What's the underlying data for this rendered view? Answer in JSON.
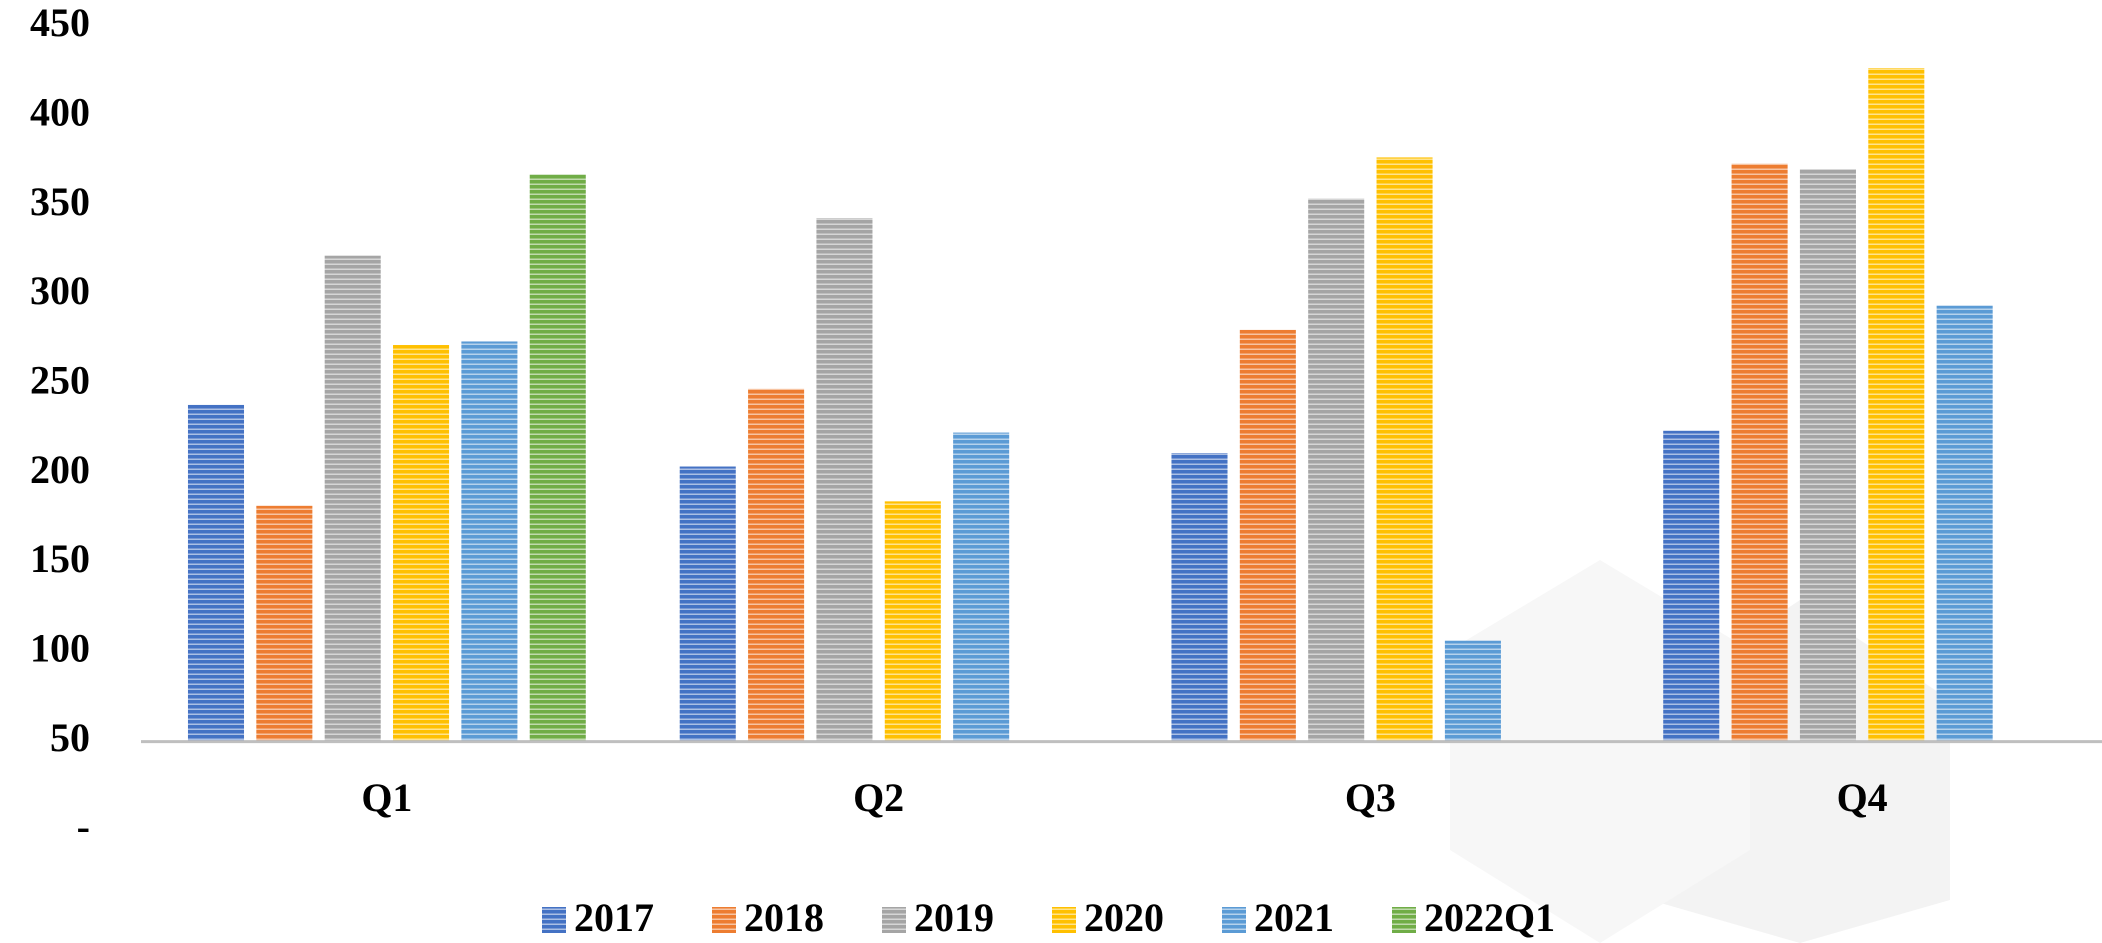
{
  "chart_data": {
    "type": "bar",
    "categories": [
      "Q1",
      "Q2",
      "Q3",
      "Q4"
    ],
    "series": [
      {
        "name": "2017",
        "color": "#4472c4",
        "values": [
          238.5,
          204,
          211.5,
          224
        ]
      },
      {
        "name": "2018",
        "color": "#ed7d31",
        "values": [
          182,
          247.5,
          280.5,
          373.5
        ]
      },
      {
        "name": "2019",
        "color": "#a5a5a5",
        "values": [
          322,
          343,
          354,
          370.5
        ]
      },
      {
        "name": "2020",
        "color": "#ffc000",
        "values": [
          272,
          184.5,
          377,
          427
        ]
      },
      {
        "name": "2021",
        "color": "#5b9bd5",
        "values": [
          274,
          223,
          106.5,
          294
        ]
      },
      {
        "name": "2022Q1",
        "color": "#70ad47",
        "values": [
          367.5,
          null,
          null,
          null
        ]
      }
    ],
    "ylim": [
      0,
      450
    ],
    "yticks": [
      {
        "value": 0,
        "label": "-"
      },
      50,
      100,
      150,
      200,
      250,
      300,
      350,
      400,
      450
    ],
    "x_axis_crosses": 50,
    "grid": false,
    "legend": "bottom"
  }
}
